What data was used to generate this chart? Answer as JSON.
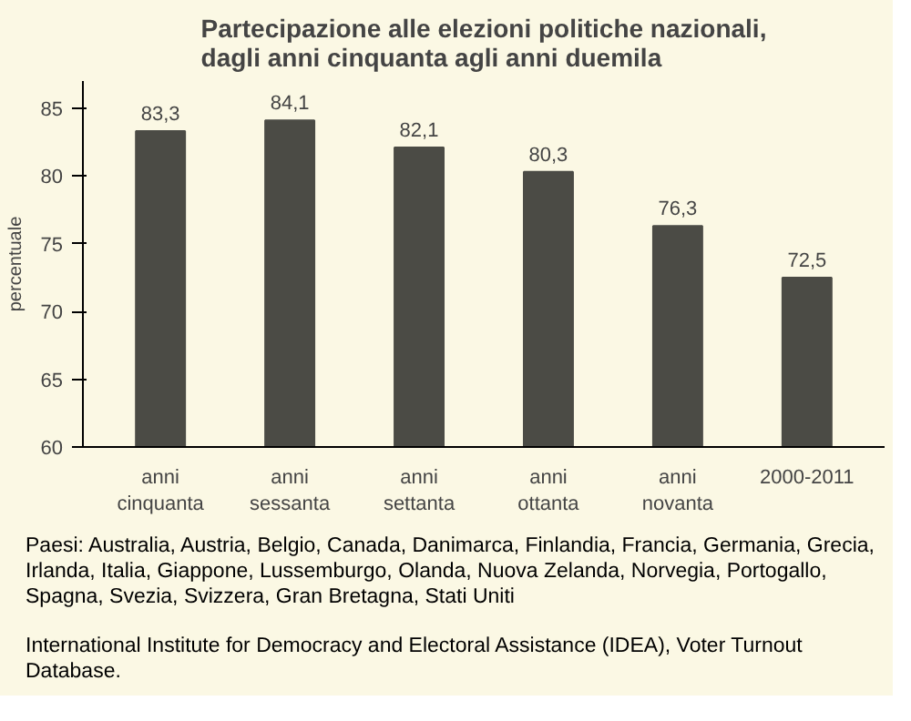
{
  "chart_data": {
    "type": "bar",
    "title": "Partecipazione alle elezioni politiche nazionali,\ndagli anni cinquanta agli anni duemila",
    "ylabel": "percentuale",
    "categories": [
      "anni\ncinquanta",
      "anni\nsessanta",
      "anni\nsettanta",
      "anni\nottanta",
      "anni\nnovanta",
      "2000-2011"
    ],
    "values": [
      83.3,
      84.1,
      82.1,
      80.3,
      76.3,
      72.5
    ],
    "value_labels": [
      "83,3",
      "84,1",
      "82,1",
      "80,3",
      "76,3",
      "72,5"
    ],
    "color": "#4b4b45",
    "ylim": [
      60,
      87
    ],
    "yticks": [
      60,
      65,
      70,
      75,
      80,
      85
    ],
    "grid": false,
    "annotations": [
      "Paesi: Australia, Austria, Belgio, Canada, Danimarca, Finlandia, Francia, Germania, Grecia, Irlanda, Italia, Giappone, Lussemburgo, Olanda, Nuova Zelanda, Norvegia, Portogallo, Spagna, Svezia, Svizzera, Gran Bretagna, Stati Uniti",
      "International Institute for Democracy and Electoral Assistance (IDEA), Voter Turnout Database."
    ]
  }
}
